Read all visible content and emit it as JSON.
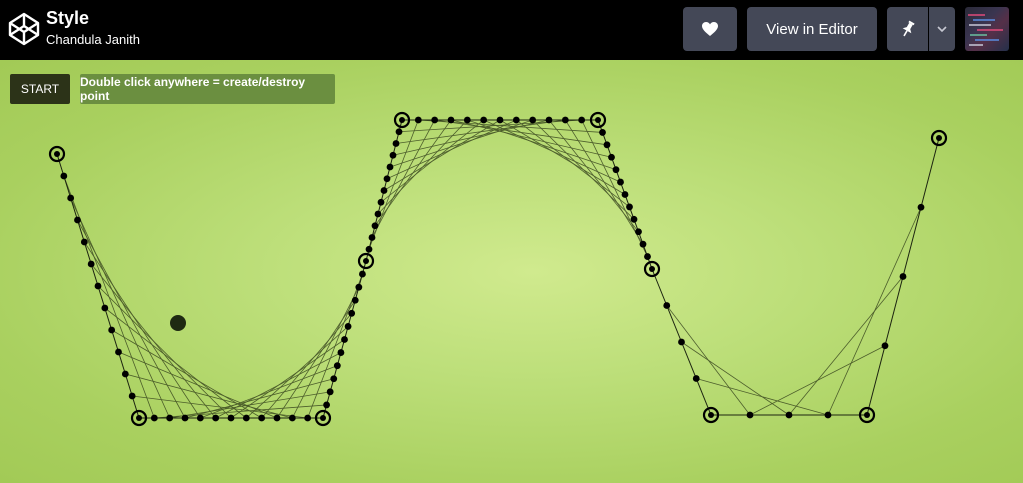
{
  "header": {
    "title": "Style",
    "author": "Chandula Janith",
    "editor_label": "View in Editor",
    "icons": {
      "logo": "codepen-logo-icon",
      "heart": "heart-icon",
      "pin": "pin-icon",
      "caret": "chevron-down-icon"
    }
  },
  "controls": {
    "start_label": "START",
    "hint": "Double click anywhere = create/destroy point"
  },
  "colors": {
    "topbar": "#000000",
    "button": "#444857",
    "start_bg": "#2c3318",
    "hint_bg": "#6b8f40",
    "stage_center": "#d0ea8e",
    "stage_edge": "#a2ca56"
  }
}
